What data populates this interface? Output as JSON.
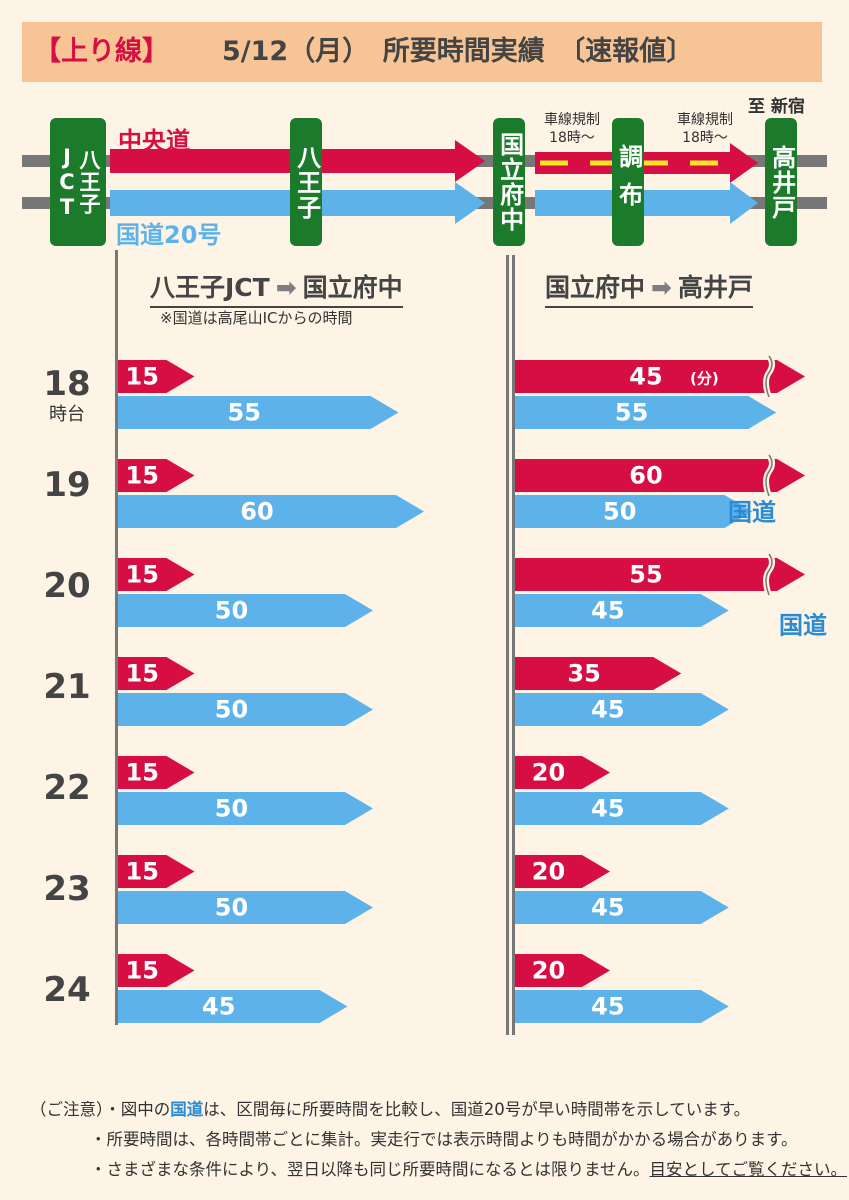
{
  "title": {
    "tag": "【上り線】",
    "text": "5/12（月）　所要時間実績　〔速報値〕"
  },
  "map": {
    "chuodo_label": "中央道",
    "route20_label": "国道20号",
    "nodes": [
      "八王子JCT",
      "八王子",
      "国立府中",
      "調布",
      "高井戸"
    ],
    "restriction_label_1": "車線規制\n18時～",
    "restriction_label_2": "車線規制\n18時～",
    "destination": "至 新宿"
  },
  "colors": {
    "chuodo": "#d70e44",
    "route20": "#5db3e9",
    "node": "#1c7a2b",
    "restriction": "#f5e625"
  },
  "sections": {
    "left_title_from": "八王子JCT",
    "left_title_to": "国立府中",
    "left_note": "※国道は高尾山ICからの時間",
    "right_title_from": "国立府中",
    "right_title_to": "高井戸"
  },
  "hour_suffix": "時台",
  "unit_label": "(分)",
  "kokudo_marker": "国道",
  "chart_data": {
    "type": "bar",
    "categories": [
      "18",
      "19",
      "20",
      "21",
      "22",
      "23",
      "24"
    ],
    "panels": [
      {
        "name": "八王子JCT → 国立府中",
        "series": [
          {
            "name": "中央道",
            "values": [
              15,
              15,
              15,
              15,
              15,
              15,
              15
            ]
          },
          {
            "name": "国道20号",
            "values": [
              55,
              60,
              50,
              50,
              50,
              50,
              45
            ]
          }
        ]
      },
      {
        "name": "国立府中 → 高井戸",
        "series": [
          {
            "name": "中央道",
            "values": [
              45,
              60,
              55,
              35,
              20,
              20,
              20
            ]
          },
          {
            "name": "国道20号",
            "values": [
              55,
              50,
              45,
              45,
              45,
              45,
              45
            ]
          }
        ],
        "truncated": [
          [
            true,
            false
          ],
          [
            true,
            false
          ],
          [
            true,
            false
          ]
        ],
        "route20_faster_hours": [
          "19",
          "20"
        ]
      }
    ]
  },
  "notes": {
    "label": "（ご注意）",
    "line1_a": "・図中の",
    "line1_k": "国道",
    "line1_b": "は、区間毎に所要時間を比較し、国道20号が早い時間帯を示しています。",
    "line2": "・所要時間は、各時間帯ごとに集計。実走行では表示時間よりも時間がかかる場合があります。",
    "line3_a": "・さまざまな条件により、翌日以降も同じ所要時間になるとは限りません。",
    "line3_b": "目安としてご覧ください。"
  }
}
